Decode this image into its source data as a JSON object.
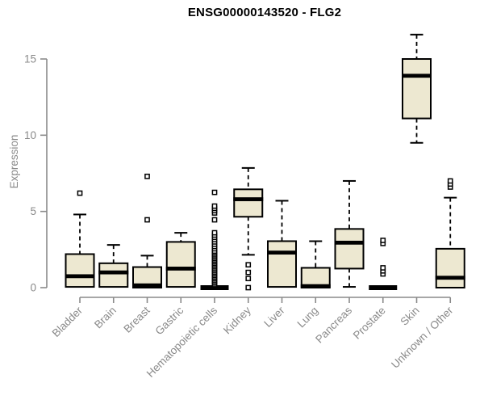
{
  "chart_data": {
    "type": "boxplot",
    "title": "ENSG00000143520 - FLG2",
    "ylabel": "Expression",
    "xlabel": "",
    "ylim": [
      0,
      15
    ],
    "yticks": [
      0,
      5,
      10,
      15
    ],
    "grid": false,
    "legend": false,
    "colors": {
      "box_fill": "#EDE8D1",
      "box_stroke": "#000000",
      "median": "#000000",
      "whisker": "#000000",
      "axis": "#8A8A8A",
      "tick_label": "#8A8A8A",
      "title": "#000000",
      "outlier_fill": "#FFFFFF",
      "background": "#FFFFFF"
    },
    "categories": [
      "Bladder",
      "Brain",
      "Breast",
      "Gastric",
      "Hematopoietic cells",
      "Kidney",
      "Liver",
      "Lung",
      "Pancreas",
      "Prostate",
      "Skin",
      "Unknown / Other"
    ],
    "series": [
      {
        "name": "Bladder",
        "lower_whisker": 0.05,
        "q1": 0.05,
        "median": 0.75,
        "q3": 2.2,
        "upper_whisker": 4.8,
        "outliers": [
          6.2
        ]
      },
      {
        "name": "Brain",
        "lower_whisker": 0.05,
        "q1": 0.05,
        "median": 1.0,
        "q3": 1.6,
        "upper_whisker": 2.8,
        "outliers": []
      },
      {
        "name": "Breast",
        "lower_whisker": 0.0,
        "q1": 0.0,
        "median": 0.15,
        "q3": 1.35,
        "upper_whisker": 2.1,
        "outliers": [
          4.45,
          7.3
        ]
      },
      {
        "name": "Gastric",
        "lower_whisker": 0.05,
        "q1": 0.05,
        "median": 1.25,
        "q3": 3.0,
        "upper_whisker": 3.6,
        "outliers": []
      },
      {
        "name": "Hematopoietic cells",
        "lower_whisker": 0.0,
        "q1": 0.0,
        "median": 0.0,
        "q3": 0.0,
        "upper_whisker": 0.0,
        "outliers": [
          0.2,
          0.3,
          0.4,
          0.5,
          0.6,
          0.7,
          0.8,
          0.9,
          1.0,
          1.1,
          1.2,
          1.3,
          1.4,
          1.5,
          1.6,
          1.7,
          1.8,
          1.9,
          2.0,
          2.1,
          2.2,
          2.3,
          2.4,
          2.55,
          2.7,
          2.85,
          3.0,
          3.15,
          3.3,
          3.45,
          3.6,
          4.45,
          4.9,
          5.05,
          5.2,
          5.35,
          6.25
        ]
      },
      {
        "name": "Kidney",
        "lower_whisker": 2.15,
        "q1": 4.65,
        "median": 5.8,
        "q3": 6.45,
        "upper_whisker": 7.85,
        "outliers": [
          1.5,
          1.0,
          0.6,
          0.0
        ]
      },
      {
        "name": "Liver",
        "lower_whisker": 0.05,
        "q1": 0.05,
        "median": 2.3,
        "q3": 3.05,
        "upper_whisker": 5.7,
        "outliers": []
      },
      {
        "name": "Lung",
        "lower_whisker": 0.0,
        "q1": 0.0,
        "median": 0.1,
        "q3": 1.3,
        "upper_whisker": 3.05,
        "outliers": []
      },
      {
        "name": "Pancreas",
        "lower_whisker": 0.05,
        "q1": 1.25,
        "median": 2.95,
        "q3": 3.85,
        "upper_whisker": 7.0,
        "outliers": []
      },
      {
        "name": "Prostate",
        "lower_whisker": 0.0,
        "q1": 0.0,
        "median": 0.0,
        "q3": 0.0,
        "upper_whisker": 0.0,
        "outliers": [
          0.9,
          1.1,
          1.3,
          2.9,
          3.1
        ]
      },
      {
        "name": "Skin",
        "lower_whisker": 9.5,
        "q1": 11.1,
        "median": 13.9,
        "q3": 15.0,
        "upper_whisker": 16.6,
        "outliers": []
      },
      {
        "name": "Unknown / Other",
        "lower_whisker": 0.0,
        "q1": 0.0,
        "median": 0.65,
        "q3": 2.55,
        "upper_whisker": 5.9,
        "outliers": [
          6.6,
          6.8,
          7.0
        ]
      }
    ]
  }
}
